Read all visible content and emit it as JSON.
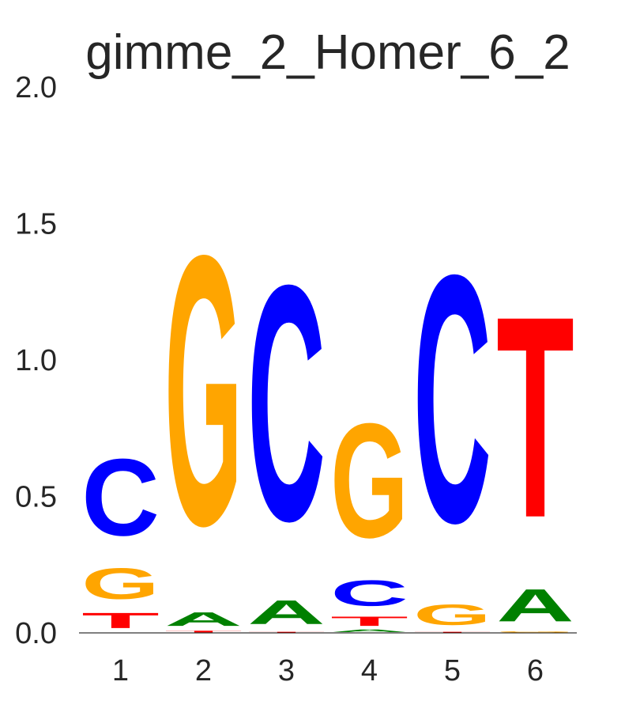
{
  "chart_data": {
    "type": "sequence-logo",
    "title": "gimme_2_Homer_6_2",
    "xlabel": "",
    "ylabel": "",
    "ylim": [
      0,
      2
    ],
    "y_ticks": [
      "0.0",
      "0.5",
      "1.0",
      "1.5",
      "2.0"
    ],
    "y_tick_values": [
      0,
      0.5,
      1,
      1.5,
      2
    ],
    "grid": false,
    "colors": {
      "A": "#008000",
      "C": "#0000ff",
      "G": "#ffa500",
      "T": "#ff0000"
    },
    "positions": [
      {
        "label": "1",
        "stack": [
          {
            "base": "T",
            "height": 0.09
          },
          {
            "base": "G",
            "height": 0.18
          },
          {
            "base": "C",
            "height": 0.45
          }
        ]
      },
      {
        "label": "2",
        "stack": [
          {
            "base": "T",
            "height": 0.01
          },
          {
            "base": "A",
            "height": 0.08
          },
          {
            "base": "G",
            "height": 1.58
          }
        ]
      },
      {
        "label": "3",
        "stack": [
          {
            "base": "T",
            "height": 0.005
          },
          {
            "base": "A",
            "height": 0.14
          },
          {
            "base": "C",
            "height": 1.38
          }
        ]
      },
      {
        "label": "4",
        "stack": [
          {
            "base": "A",
            "height": 0.015
          },
          {
            "base": "T",
            "height": 0.055
          },
          {
            "base": "C",
            "height": 0.15
          },
          {
            "base": "G",
            "height": 0.67
          }
        ]
      },
      {
        "label": "5",
        "stack": [
          {
            "base": "T",
            "height": 0.005
          },
          {
            "base": "G",
            "height": 0.12
          },
          {
            "base": "C",
            "height": 1.45
          }
        ]
      },
      {
        "label": "6",
        "stack": [
          {
            "base": "G",
            "height": 0.005
          },
          {
            "base": "A",
            "height": 0.19
          },
          {
            "base": "T",
            "height": 1.18
          }
        ]
      }
    ]
  }
}
